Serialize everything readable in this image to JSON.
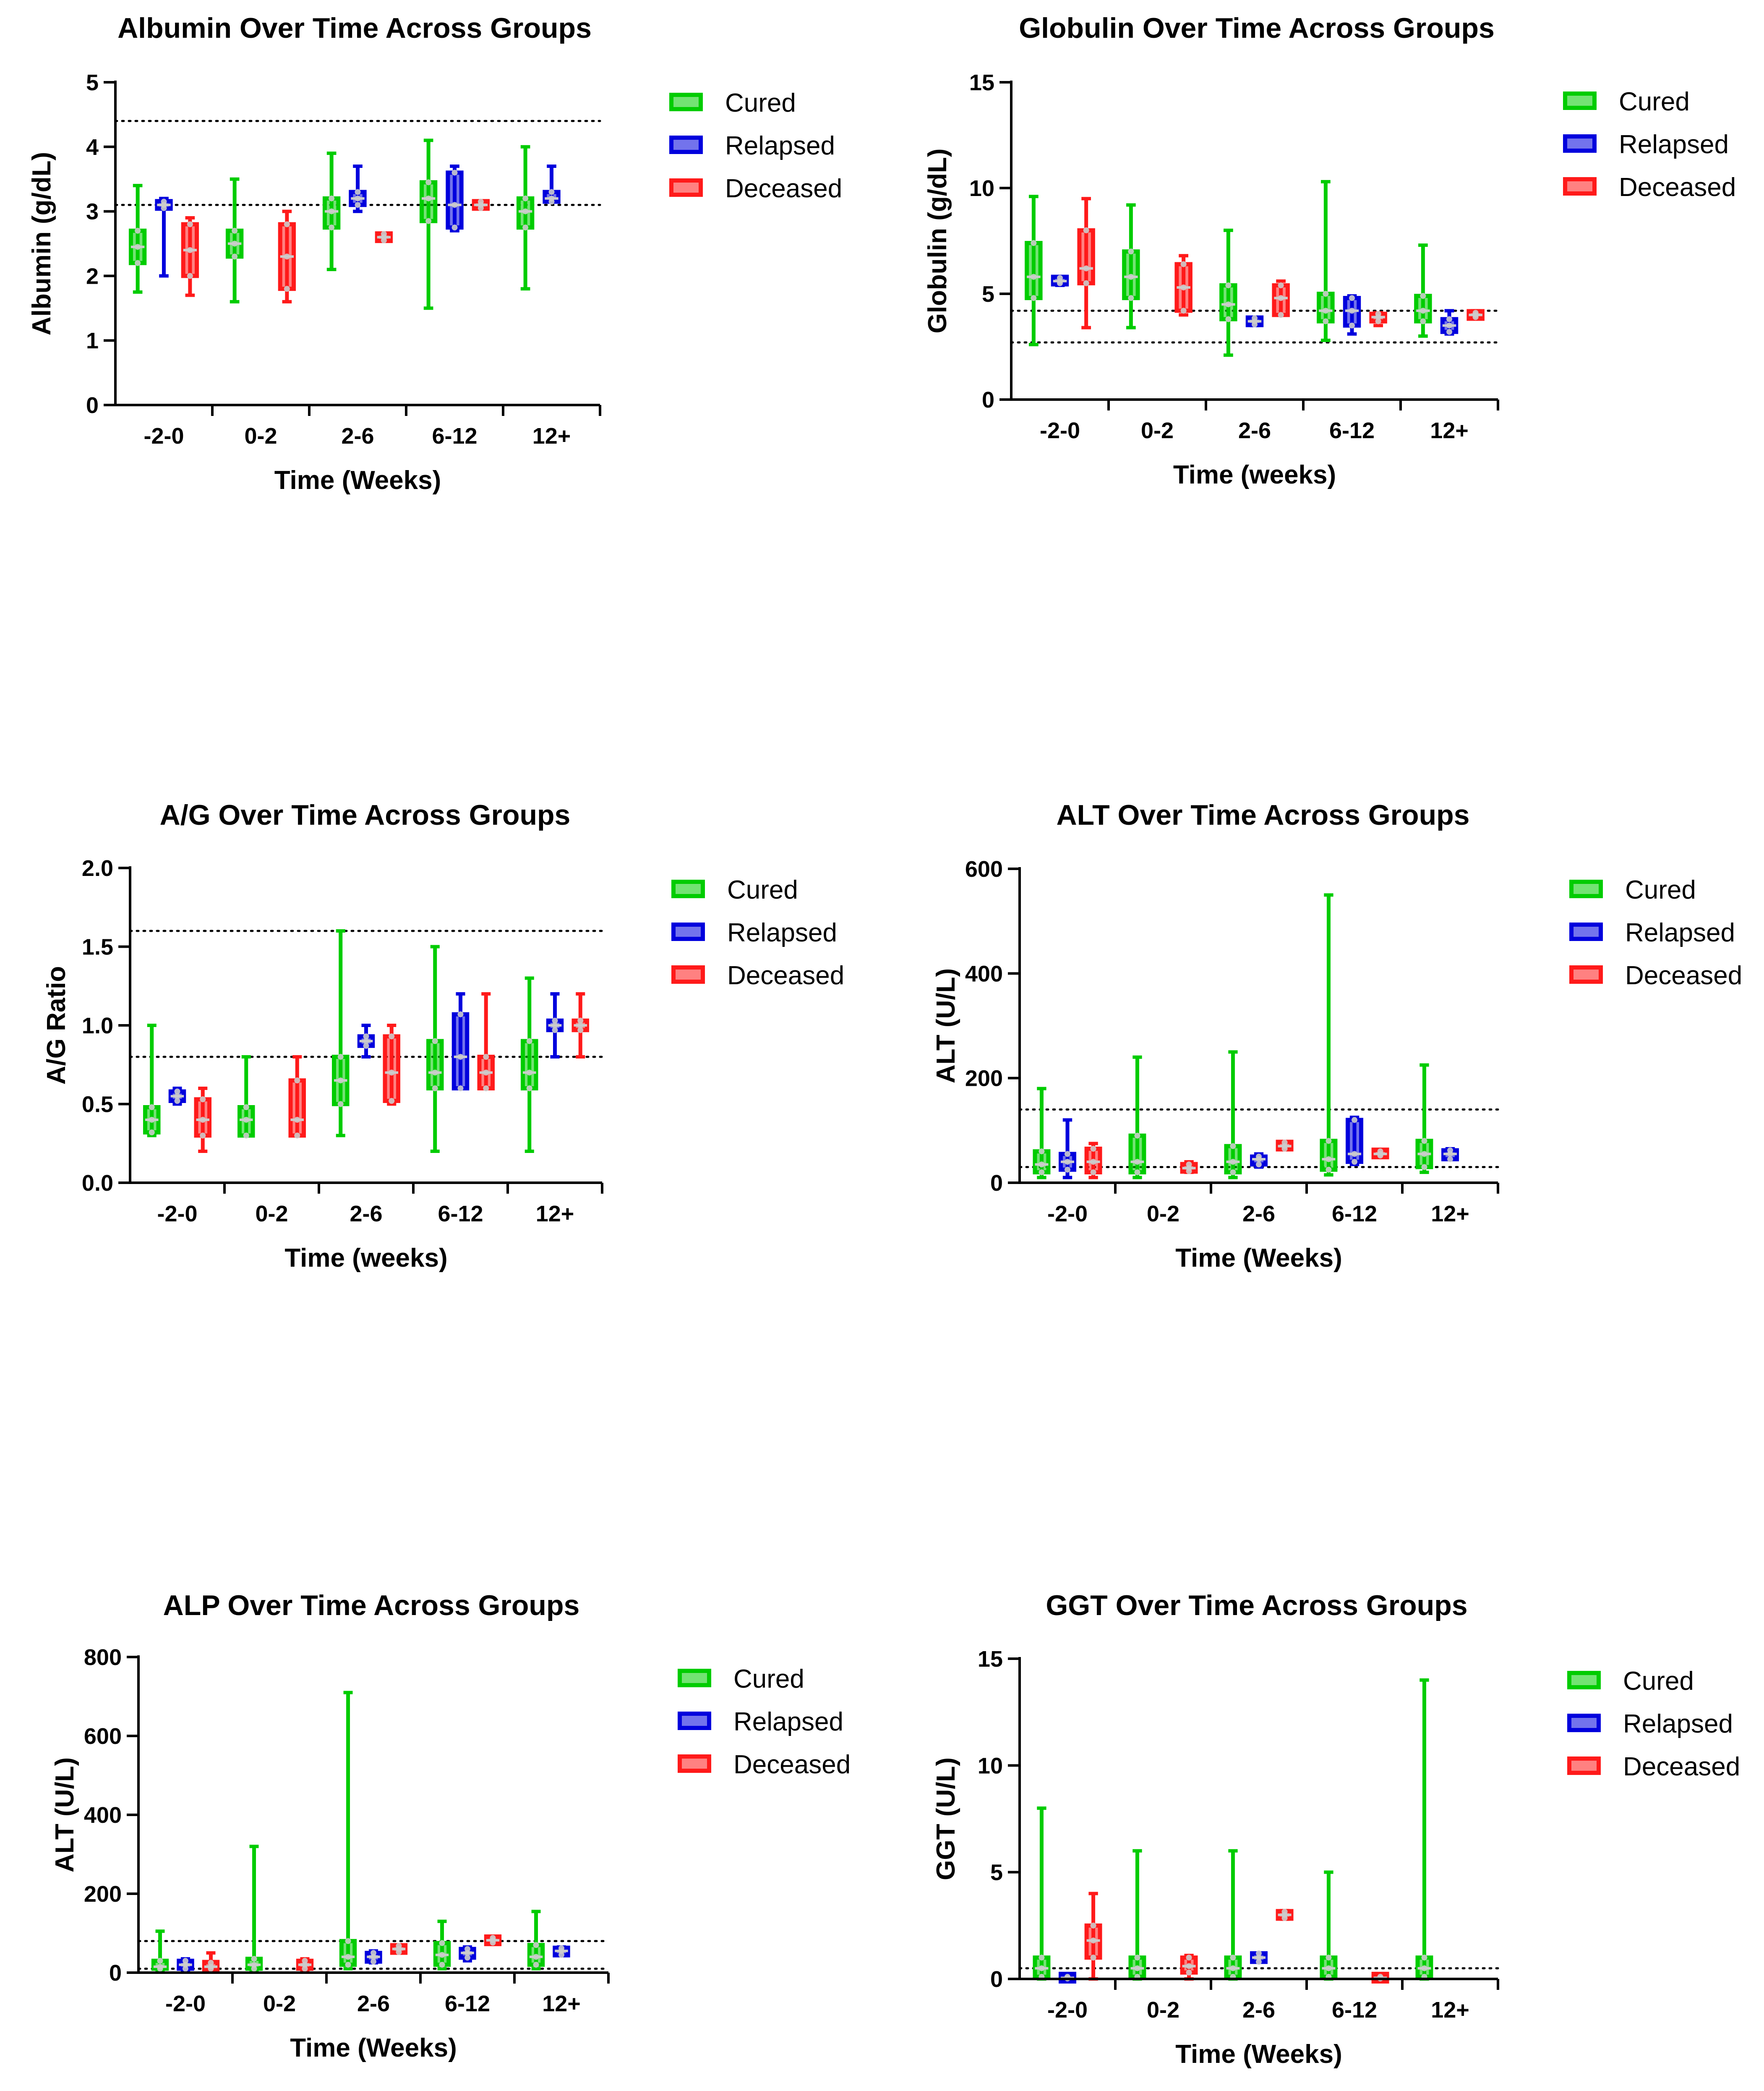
{
  "figure_label": "Liver function markers over time in cured, relapsed and deceased groups",
  "colors": {
    "Cured": "#00cc00",
    "Relapsed": "#0000dd",
    "Deceased": "#ff1a1a",
    "points": "#cccccc",
    "axis": "#000000"
  },
  "chart_data": [
    {
      "id": "albumin",
      "type": "box",
      "title": "Albumin Over Time Across Groups",
      "xlabel": "Time (Weeks)",
      "ylabel": "Albumin (g/dL)",
      "ylim": [
        0,
        5
      ],
      "yticks": [
        0,
        1,
        2,
        3,
        4,
        5
      ],
      "categories": [
        "-2-0",
        "0-2",
        "2-6",
        "6-12",
        "12+"
      ],
      "reference_lines": [
        3.1,
        4.4
      ],
      "legend": [
        "Cured",
        "Relapsed",
        "Deceased"
      ],
      "series": [
        {
          "name": "Cured",
          "boxes": [
            {
              "min": 1.75,
              "q1": 2.2,
              "median": 2.45,
              "q3": 2.7,
              "max": 3.4
            },
            {
              "min": 1.6,
              "q1": 2.3,
              "median": 2.5,
              "q3": 2.7,
              "max": 3.5
            },
            {
              "min": 2.1,
              "q1": 2.75,
              "median": 3.0,
              "q3": 3.2,
              "max": 3.9
            },
            {
              "min": 1.5,
              "q1": 2.85,
              "median": 3.2,
              "q3": 3.45,
              "max": 4.1
            },
            {
              "min": 1.8,
              "q1": 2.75,
              "median": 3.0,
              "q3": 3.2,
              "max": 4.0
            }
          ]
        },
        {
          "name": "Relapsed",
          "boxes": [
            {
              "min": 2.0,
              "q1": 3.05,
              "median": 3.1,
              "q3": 3.15,
              "max": 3.2
            },
            null,
            {
              "min": 3.0,
              "q1": 3.1,
              "median": 3.2,
              "q3": 3.3,
              "max": 3.7
            },
            {
              "min": 2.7,
              "q1": 2.75,
              "median": 3.1,
              "q3": 3.6,
              "max": 3.7
            },
            {
              "min": 3.15,
              "q1": 3.15,
              "median": 3.2,
              "q3": 3.3,
              "max": 3.7
            }
          ]
        },
        {
          "name": "Deceased",
          "boxes": [
            {
              "min": 1.7,
              "q1": 2.0,
              "median": 2.4,
              "q3": 2.8,
              "max": 2.9
            },
            {
              "min": 1.6,
              "q1": 1.8,
              "median": 2.3,
              "q3": 2.8,
              "max": 3.0
            },
            {
              "min": 2.55,
              "q1": 2.55,
              "median": 2.6,
              "q3": 2.65,
              "max": 2.65
            },
            {
              "min": 3.05,
              "q1": 3.05,
              "median": 3.1,
              "q3": 3.15,
              "max": 3.15
            },
            null
          ]
        }
      ]
    },
    {
      "id": "globulin",
      "type": "box",
      "title": "Globulin Over Time Across Groups",
      "xlabel": "Time (weeks)",
      "ylabel": "Globulin (g/dL)",
      "ylim": [
        0,
        15
      ],
      "yticks": [
        0,
        5,
        10,
        15
      ],
      "categories": [
        "-2-0",
        "0-2",
        "2-6",
        "6-12",
        "12+"
      ],
      "reference_lines": [
        2.7,
        4.2
      ],
      "legend": [
        "Cured",
        "Relapsed",
        "Deceased"
      ],
      "series": [
        {
          "name": "Cured",
          "boxes": [
            {
              "min": 2.6,
              "q1": 4.8,
              "median": 5.8,
              "q3": 7.4,
              "max": 9.6
            },
            {
              "min": 3.4,
              "q1": 4.8,
              "median": 5.8,
              "q3": 7.0,
              "max": 9.2
            },
            {
              "min": 2.1,
              "q1": 3.8,
              "median": 4.5,
              "q3": 5.4,
              "max": 8.0
            },
            {
              "min": 2.8,
              "q1": 3.7,
              "median": 4.2,
              "q3": 5.0,
              "max": 10.3
            },
            {
              "min": 3.0,
              "q1": 3.7,
              "median": 4.2,
              "q3": 4.9,
              "max": 7.3
            }
          ]
        },
        {
          "name": "Relapsed",
          "boxes": [
            {
              "min": 5.4,
              "q1": 5.5,
              "median": 5.6,
              "q3": 5.75,
              "max": 5.8
            },
            null,
            {
              "min": 3.5,
              "q1": 3.55,
              "median": 3.7,
              "q3": 3.85,
              "max": 3.9
            },
            {
              "min": 3.1,
              "q1": 3.5,
              "median": 4.2,
              "q3": 4.8,
              "max": 4.9
            },
            {
              "min": 3.1,
              "q1": 3.2,
              "median": 3.5,
              "q3": 3.8,
              "max": 4.2
            }
          ]
        },
        {
          "name": "Deceased",
          "boxes": [
            {
              "min": 3.4,
              "q1": 5.5,
              "median": 6.2,
              "q3": 8.0,
              "max": 9.5
            },
            {
              "min": 4.0,
              "q1": 4.2,
              "median": 5.3,
              "q3": 6.4,
              "max": 6.8
            },
            {
              "min": 4.0,
              "q1": 4.0,
              "median": 4.8,
              "q3": 5.4,
              "max": 5.6
            },
            {
              "min": 3.5,
              "q1": 3.7,
              "median": 3.9,
              "q3": 4.05,
              "max": 4.1
            },
            {
              "min": 3.9,
              "q1": 3.9,
              "median": 4.0,
              "q3": 4.1,
              "max": 4.2
            }
          ]
        }
      ]
    },
    {
      "id": "ag-ratio",
      "type": "box",
      "title": "A/G Over Time Across Groups",
      "xlabel": "Time (weeks)",
      "ylabel": "A/G Ratio",
      "ylim": [
        0,
        2.0
      ],
      "yticks": [
        0.0,
        0.5,
        1.0,
        1.5,
        2.0
      ],
      "ytick_labels": [
        "0.0",
        "0.5",
        "1.0",
        "1.5",
        "2.0"
      ],
      "categories": [
        "-2-0",
        "0-2",
        "2-6",
        "6-12",
        "12+"
      ],
      "reference_lines": [
        0.8,
        1.6
      ],
      "legend": [
        "Cured",
        "Relapsed",
        "Deceased"
      ],
      "series": [
        {
          "name": "Cured",
          "boxes": [
            {
              "min": 0.3,
              "q1": 0.32,
              "median": 0.4,
              "q3": 0.48,
              "max": 1.0
            },
            {
              "min": 0.3,
              "q1": 0.3,
              "median": 0.4,
              "q3": 0.48,
              "max": 0.8
            },
            {
              "min": 0.3,
              "q1": 0.5,
              "median": 0.65,
              "q3": 0.8,
              "max": 1.6
            },
            {
              "min": 0.2,
              "q1": 0.6,
              "median": 0.7,
              "q3": 0.9,
              "max": 1.5
            },
            {
              "min": 0.2,
              "q1": 0.6,
              "median": 0.7,
              "q3": 0.9,
              "max": 1.3
            }
          ]
        },
        {
          "name": "Relapsed",
          "boxes": [
            {
              "min": 0.5,
              "q1": 0.52,
              "median": 0.55,
              "q3": 0.58,
              "max": 0.6
            },
            null,
            {
              "min": 0.8,
              "q1": 0.87,
              "median": 0.9,
              "q3": 0.93,
              "max": 1.0
            },
            {
              "min": 0.6,
              "q1": 0.6,
              "median": 0.8,
              "q3": 1.07,
              "max": 1.2
            },
            {
              "min": 0.8,
              "q1": 0.97,
              "median": 1.0,
              "q3": 1.03,
              "max": 1.2
            }
          ]
        },
        {
          "name": "Deceased",
          "boxes": [
            {
              "min": 0.2,
              "q1": 0.3,
              "median": 0.4,
              "q3": 0.53,
              "max": 0.6
            },
            {
              "min": 0.3,
              "q1": 0.3,
              "median": 0.4,
              "q3": 0.65,
              "max": 0.8
            },
            {
              "min": 0.5,
              "q1": 0.52,
              "median": 0.7,
              "q3": 0.93,
              "max": 1.0
            },
            {
              "min": 0.6,
              "q1": 0.6,
              "median": 0.7,
              "q3": 0.8,
              "max": 1.2
            },
            {
              "min": 0.8,
              "q1": 0.97,
              "median": 1.0,
              "q3": 1.03,
              "max": 1.2
            }
          ]
        }
      ]
    },
    {
      "id": "alt",
      "type": "box",
      "title": "ALT Over Time Across Groups",
      "xlabel": "Time (Weeks)",
      "ylabel": "ALT (U/L)",
      "ylim": [
        0,
        600
      ],
      "yticks": [
        0,
        200,
        400,
        600
      ],
      "categories": [
        "-2-0",
        "0-2",
        "2-6",
        "6-12",
        "12+"
      ],
      "reference_lines": [
        30,
        140
      ],
      "legend": [
        "Cured",
        "Relapsed",
        "Deceased"
      ],
      "series": [
        {
          "name": "Cured",
          "boxes": [
            {
              "min": 10,
              "q1": 20,
              "median": 35,
              "q3": 60,
              "max": 180
            },
            {
              "min": 10,
              "q1": 20,
              "median": 40,
              "q3": 90,
              "max": 240
            },
            {
              "min": 10,
              "q1": 20,
              "median": 40,
              "q3": 70,
              "max": 250
            },
            {
              "min": 15,
              "q1": 25,
              "median": 45,
              "q3": 80,
              "max": 550
            },
            {
              "min": 20,
              "q1": 30,
              "median": 55,
              "q3": 80,
              "max": 225
            }
          ]
        },
        {
          "name": "Relapsed",
          "boxes": [
            {
              "min": 10,
              "q1": 25,
              "median": 40,
              "q3": 55,
              "max": 120
            },
            null,
            {
              "min": 30,
              "q1": 35,
              "median": 45,
              "q3": 50,
              "max": 55
            },
            {
              "min": 35,
              "q1": 40,
              "median": 55,
              "q3": 120,
              "max": 125
            },
            {
              "min": 45,
              "q1": 45,
              "median": 55,
              "q3": 62,
              "max": 65
            }
          ]
        },
        {
          "name": "Deceased",
          "boxes": [
            {
              "min": 10,
              "q1": 20,
              "median": 40,
              "q3": 65,
              "max": 75
            },
            {
              "min": 20,
              "q1": 22,
              "median": 28,
              "q3": 35,
              "max": 40
            },
            {
              "min": 63,
              "q1": 65,
              "median": 70,
              "q3": 77,
              "max": 78
            },
            {
              "min": 50,
              "q1": 52,
              "median": 55,
              "q3": 60,
              "max": 62
            },
            null
          ]
        }
      ]
    },
    {
      "id": "alp",
      "type": "box",
      "title": "ALP Over Time Across Groups",
      "xlabel": "Time (Weeks)",
      "ylabel": "ALT (U/L)",
      "ylim": [
        0,
        800
      ],
      "yticks": [
        0,
        200,
        400,
        600,
        800
      ],
      "categories": [
        "-2-0",
        "0-2",
        "2-6",
        "6-12",
        "12+"
      ],
      "reference_lines": [
        10,
        80
      ],
      "legend": [
        "Cured",
        "Relapsed",
        "Deceased"
      ],
      "series": [
        {
          "name": "Cured",
          "boxes": [
            {
              "min": 5,
              "q1": 10,
              "median": 15,
              "q3": 30,
              "max": 105
            },
            {
              "min": 5,
              "q1": 10,
              "median": 20,
              "q3": 35,
              "max": 320
            },
            {
              "min": 10,
              "q1": 20,
              "median": 40,
              "q3": 80,
              "max": 710
            },
            {
              "min": 10,
              "q1": 20,
              "median": 45,
              "q3": 75,
              "max": 130
            },
            {
              "min": 10,
              "q1": 20,
              "median": 40,
              "q3": 70,
              "max": 155
            }
          ]
        },
        {
          "name": "Relapsed",
          "boxes": [
            {
              "min": 5,
              "q1": 10,
              "median": 20,
              "q3": 30,
              "max": 35
            },
            null,
            {
              "min": 25,
              "q1": 28,
              "median": 40,
              "q3": 50,
              "max": 55
            },
            {
              "min": 30,
              "q1": 38,
              "median": 50,
              "q3": 60,
              "max": 65
            },
            {
              "min": 45,
              "q1": 45,
              "median": 55,
              "q3": 62,
              "max": 65
            }
          ]
        },
        {
          "name": "Deceased",
          "boxes": [
            {
              "min": 5,
              "q1": 10,
              "median": 15,
              "q3": 25,
              "max": 50
            },
            {
              "min": 5,
              "q1": 10,
              "median": 20,
              "q3": 30,
              "max": 35
            },
            {
              "min": 50,
              "q1": 52,
              "median": 60,
              "q3": 68,
              "max": 70
            },
            {
              "min": 75,
              "q1": 76,
              "median": 82,
              "q3": 88,
              "max": 90
            },
            null
          ]
        }
      ]
    },
    {
      "id": "ggt",
      "type": "box",
      "title": "GGT Over Time Across Groups",
      "xlabel": "Time (Weeks)",
      "ylabel": "GGT (U/L)",
      "ylim": [
        0,
        15
      ],
      "yticks": [
        0,
        5,
        10,
        15
      ],
      "categories": [
        "-2-0",
        "0-2",
        "2-6",
        "6-12",
        "12+"
      ],
      "reference_lines": [
        0.5
      ],
      "legend": [
        "Cured",
        "Relapsed",
        "Deceased"
      ],
      "series": [
        {
          "name": "Cured",
          "boxes": [
            {
              "min": 0,
              "q1": 0.1,
              "median": 0.5,
              "q3": 1.0,
              "max": 8
            },
            {
              "min": 0,
              "q1": 0.1,
              "median": 0.5,
              "q3": 1.0,
              "max": 6
            },
            {
              "min": 0,
              "q1": 0.1,
              "median": 0.5,
              "q3": 1.0,
              "max": 6
            },
            {
              "min": 0,
              "q1": 0.1,
              "median": 0.5,
              "q3": 1.0,
              "max": 5
            },
            {
              "min": 0,
              "q1": 0.1,
              "median": 0.5,
              "q3": 1.0,
              "max": 14
            }
          ]
        },
        {
          "name": "Relapsed",
          "boxes": [
            {
              "min": 0,
              "q1": 0.02,
              "median": 0.05,
              "q3": 0.1,
              "max": 0.15
            },
            null,
            {
              "min": 0.8,
              "q1": 0.8,
              "median": 1.0,
              "q3": 1.2,
              "max": 1.2
            },
            null,
            null
          ]
        },
        {
          "name": "Deceased",
          "boxes": [
            {
              "min": 0,
              "q1": 1.0,
              "median": 1.8,
              "q3": 2.5,
              "max": 4.0
            },
            {
              "min": 0,
              "q1": 0.3,
              "median": 0.6,
              "q3": 1.0,
              "max": 1.1
            },
            {
              "min": 2.8,
              "q1": 2.85,
              "median": 3.0,
              "q3": 3.15,
              "max": 3.2
            },
            {
              "min": 0,
              "q1": 0.02,
              "median": 0.05,
              "q3": 0.1,
              "max": 0.15
            },
            null
          ]
        }
      ]
    }
  ]
}
